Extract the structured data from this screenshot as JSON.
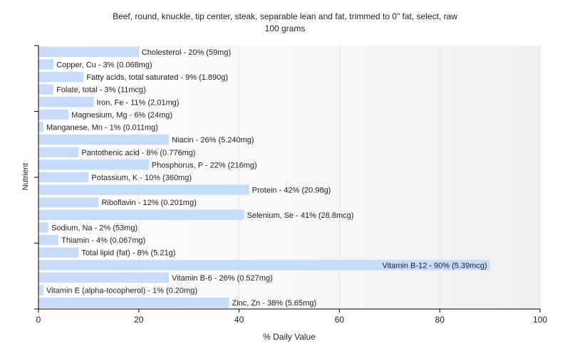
{
  "chart_data": {
    "type": "bar",
    "orientation": "horizontal",
    "title": "Beef, round, knuckle, tip center, steak, separable lean and fat, trimmed to 0\" fat, select, raw",
    "subtitle": "100 grams",
    "xlabel": "% Daily Value",
    "ylabel": "Nutrient",
    "xlim": [
      0,
      100
    ],
    "xticks": [
      0,
      20,
      40,
      60,
      80,
      100
    ],
    "grid": true,
    "bar_color": "#c6dcfa",
    "categories": [
      "Cholesterol",
      "Copper, Cu",
      "Fatty acids, total saturated",
      "Folate, total",
      "Iron, Fe",
      "Magnesium, Mg",
      "Manganese, Mn",
      "Niacin",
      "Pantothenic acid",
      "Phosphorus, P",
      "Potassium, K",
      "Protein",
      "Riboflavin",
      "Selenium, Se",
      "Sodium, Na",
      "Thiamin",
      "Total lipid (fat)",
      "Vitamin B-12",
      "Vitamin B-6",
      "Vitamin E (alpha-tocopherol)",
      "Zinc, Zn"
    ],
    "values": [
      20,
      3,
      9,
      3,
      11,
      6,
      1,
      26,
      8,
      22,
      10,
      42,
      12,
      41,
      2,
      4,
      8,
      90,
      26,
      1,
      38
    ],
    "labels": [
      "Cholesterol - 20% (59mg)",
      "Copper, Cu - 3% (0.068mg)",
      "Fatty acids, total saturated - 9% (1.890g)",
      "Folate, total - 3% (11mcg)",
      "Iron, Fe - 11% (2.01mg)",
      "Magnesium, Mg - 6% (24mg)",
      "Manganese, Mn - 1% (0.011mg)",
      "Niacin - 26% (5.240mg)",
      "Pantothenic acid - 8% (0.776mg)",
      "Phosphorus, P - 22% (216mg)",
      "Potassium, K - 10% (360mg)",
      "Protein - 42% (20.98g)",
      "Riboflavin - 12% (0.201mg)",
      "Selenium, Se - 41% (28.8mcg)",
      "Sodium, Na - 2% (53mg)",
      "Thiamin - 4% (0.067mg)",
      "Total lipid (fat) - 8% (5.21g)",
      "Vitamin B-12 - 90% (5.39mcg)",
      "Vitamin B-6 - 26% (0.527mg)",
      "Vitamin E (alpha-tocopherol) - 1% (0.20mg)",
      "Zinc, Zn - 38% (5.65mg)"
    ]
  }
}
